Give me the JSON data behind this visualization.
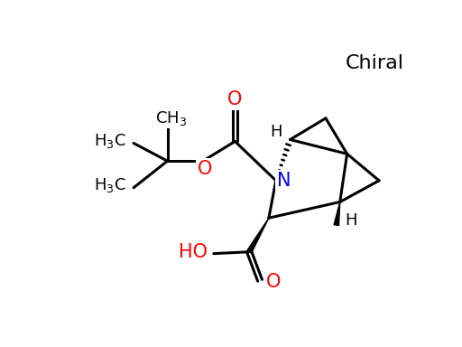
{
  "title": "Chiral",
  "title_color": "black",
  "title_fontsize": 16,
  "background_color": "white",
  "atom_N_color": "blue",
  "atom_O_color": "red",
  "atom_C_color": "black",
  "bond_color": "black",
  "bond_width": 2.2,
  "figsize": [
    5.12,
    3.84
  ],
  "dpi": 100,
  "xlim": [
    0,
    10
  ],
  "ylim": [
    0,
    7.5
  ]
}
